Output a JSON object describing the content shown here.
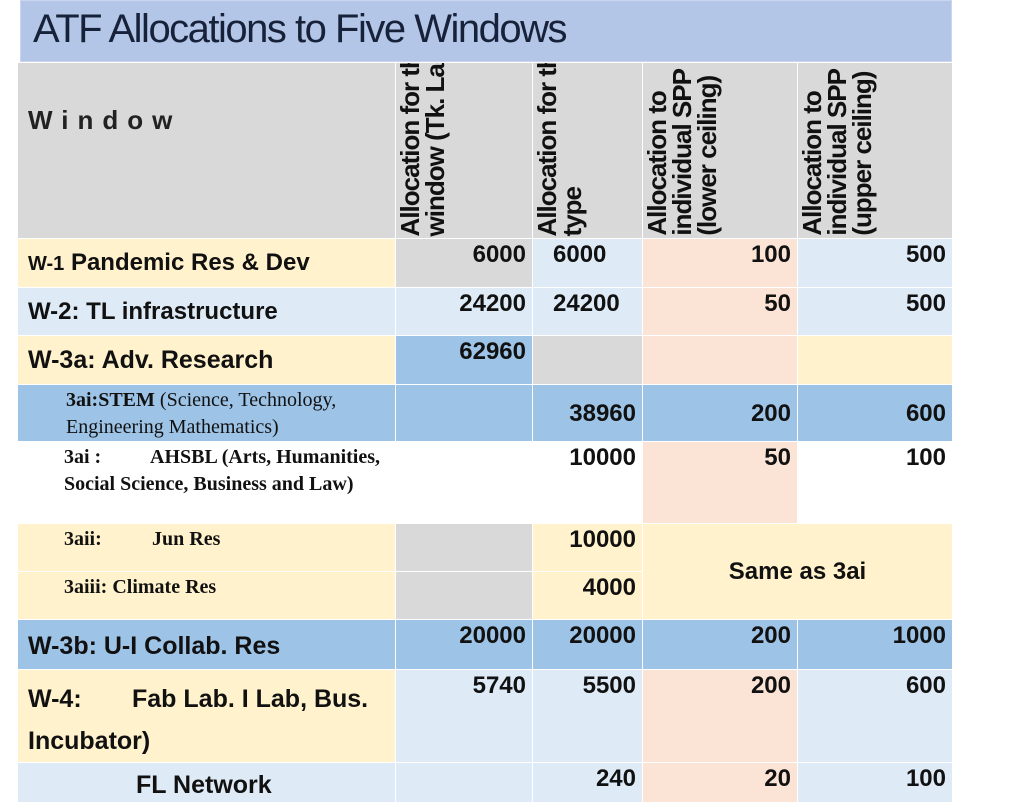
{
  "title": "ATF Allocations to Five Windows",
  "header": {
    "window": "Window",
    "col_window_alloc": "Allocation for the window (Tk. Lac)",
    "col_type_alloc": "Allocation for this type",
    "col_lower": "Allocation to individual SPP (lower ceiling)",
    "col_upper": "Allocation to individual SPP (upper ceiling)"
  },
  "rows": {
    "w1": {
      "prefix": "W-1",
      "name": "Pandemic Res & Dev",
      "window_alloc": "6000",
      "type_alloc": "6000",
      "lower": "100",
      "upper": "500"
    },
    "w2": {
      "name": "W-2: TL infrastructure",
      "window_alloc": "24200",
      "type_alloc": "24200",
      "lower": "50",
      "upper": "500"
    },
    "w3a": {
      "name": "W-3a: Adv. Research",
      "window_alloc": "62960"
    },
    "stem": {
      "code": "3ai:STEM",
      "desc": "(Science, Technology, Engineering Mathematics)",
      "type_alloc": "38960",
      "lower": "200",
      "upper": "600"
    },
    "ahsbl": {
      "code": "3ai :",
      "desc": "AHSBL (Arts, Humanities, Social Science, Business and Law)",
      "type_alloc": "10000",
      "lower": "50",
      "upper": "100"
    },
    "jun": {
      "code": "3aii:",
      "desc": "Jun Res",
      "type_alloc": "10000"
    },
    "climate": {
      "desc": "3aiii: Climate Res",
      "type_alloc": "4000"
    },
    "same_as": "Same as 3ai",
    "w3b": {
      "name": "W-3b: U-I Collab. Res",
      "window_alloc": "20000",
      "type_alloc": "20000",
      "lower": "200",
      "upper": "1000"
    },
    "w4": {
      "name_a": "W-4:",
      "name_b": "Fab Lab. I Lab, Bus.",
      "name_c": "Incubator)",
      "window_alloc": "5740",
      "type_alloc": "5500",
      "lower": "200",
      "upper": "600"
    },
    "fl": {
      "name": "FL Network",
      "type_alloc": "240",
      "lower": "20",
      "upper": "100"
    }
  }
}
